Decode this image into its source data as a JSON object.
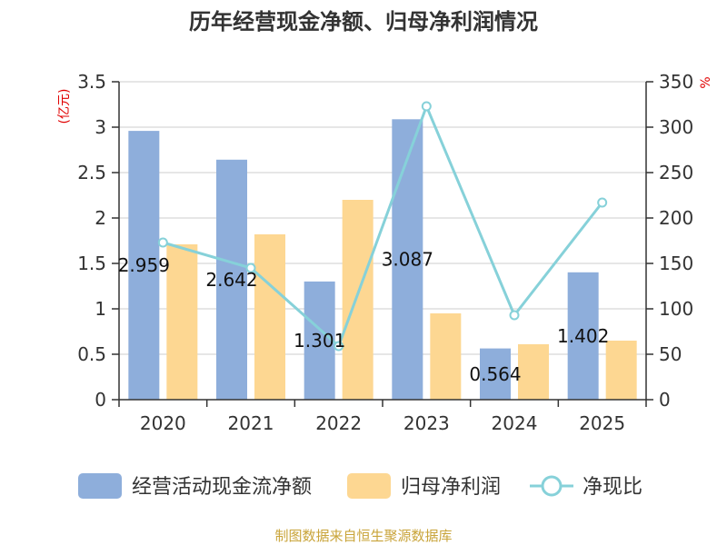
{
  "chart_data": {
    "type": "bar",
    "title": "历年经营现金净额、归母净利润情况",
    "categories": [
      "2020",
      "2021",
      "2022",
      "2023",
      "2024",
      "2025"
    ],
    "series": [
      {
        "name": "经营活动现金流净额",
        "axis": "left",
        "kind": "bar",
        "color": "#8eaedb",
        "values": [
          2.959,
          2.642,
          1.301,
          3.087,
          0.564,
          1.402
        ],
        "labels": [
          "2.959",
          "2.642",
          "1.301",
          "3.087",
          "0.564",
          "1.402"
        ]
      },
      {
        "name": "归母净利润",
        "axis": "left",
        "kind": "bar",
        "color": "#fdd792",
        "values": [
          1.71,
          1.82,
          2.2,
          0.95,
          0.61,
          0.65
        ]
      },
      {
        "name": "净现比",
        "axis": "right",
        "kind": "line",
        "color": "#86d1d9",
        "values": [
          173,
          145,
          59,
          323,
          93,
          217
        ]
      }
    ],
    "left_axis": {
      "unit": "(亿元)",
      "min": 0,
      "max": 3.5,
      "ticks": [
        "0",
        "0.5",
        "1",
        "1.5",
        "2",
        "2.5",
        "3",
        "3.5"
      ]
    },
    "right_axis": {
      "unit": "%",
      "min": 0,
      "max": 350,
      "ticks": [
        "0",
        "50",
        "100",
        "150",
        "200",
        "250",
        "300",
        "350"
      ]
    },
    "grid": true,
    "legend": "bottom"
  },
  "footer": {
    "source": "制图数据来自恒生聚源数据库"
  }
}
